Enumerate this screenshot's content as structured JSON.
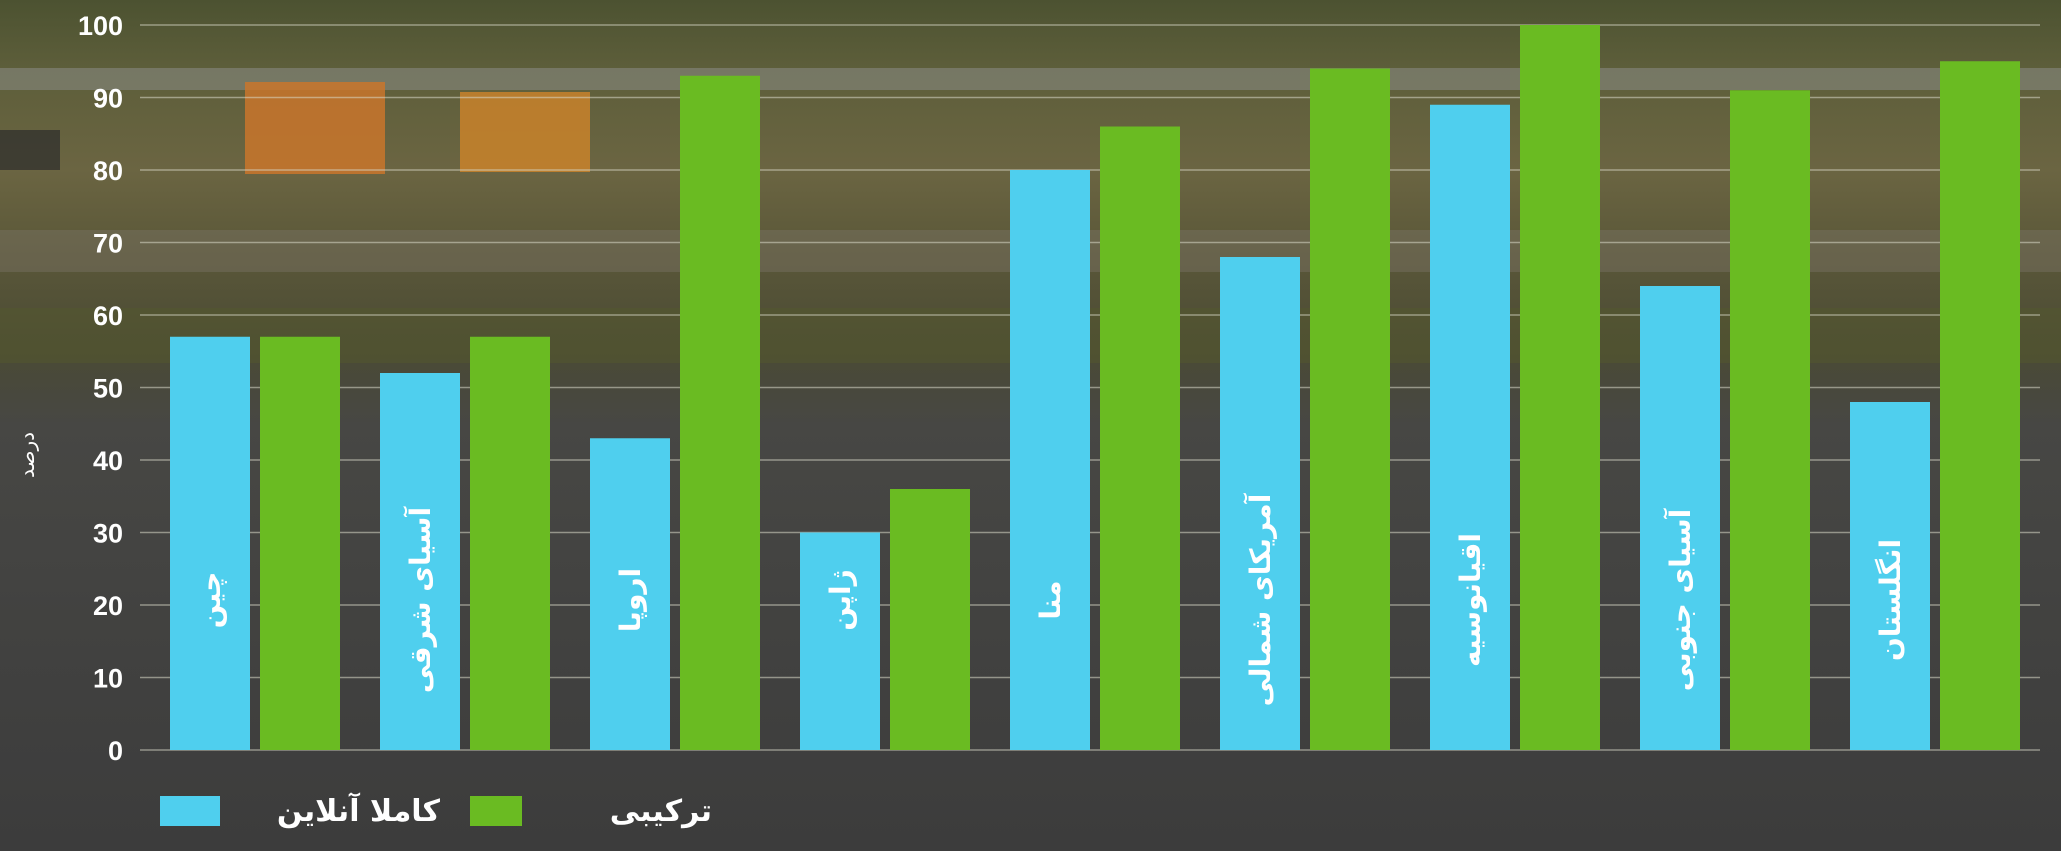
{
  "chart_data": {
    "type": "bar",
    "title": "",
    "xlabel": "",
    "ylabel": "درصد",
    "ylim": [
      0,
      100
    ],
    "yticks": [
      0,
      10,
      20,
      30,
      40,
      50,
      60,
      70,
      80,
      90,
      100
    ],
    "grid": true,
    "legend_position": "bottom-left",
    "categories": [
      "چین",
      "آسیای شرقی",
      "اروپا",
      "ژاپن",
      "منا",
      "آمریکای شمالی",
      "اقیانوسیه",
      "آسیای جنوبی",
      "انگلستان"
    ],
    "series": [
      {
        "name": "کاملا آنلاین",
        "color": "#4fcfee",
        "values": [
          57,
          52,
          43,
          30,
          80,
          68,
          89,
          64,
          48
        ]
      },
      {
        "name": "ترکیبی",
        "color": "#6abb22",
        "values": [
          57,
          57,
          93,
          36,
          86,
          94,
          100,
          91,
          95
        ]
      }
    ]
  }
}
